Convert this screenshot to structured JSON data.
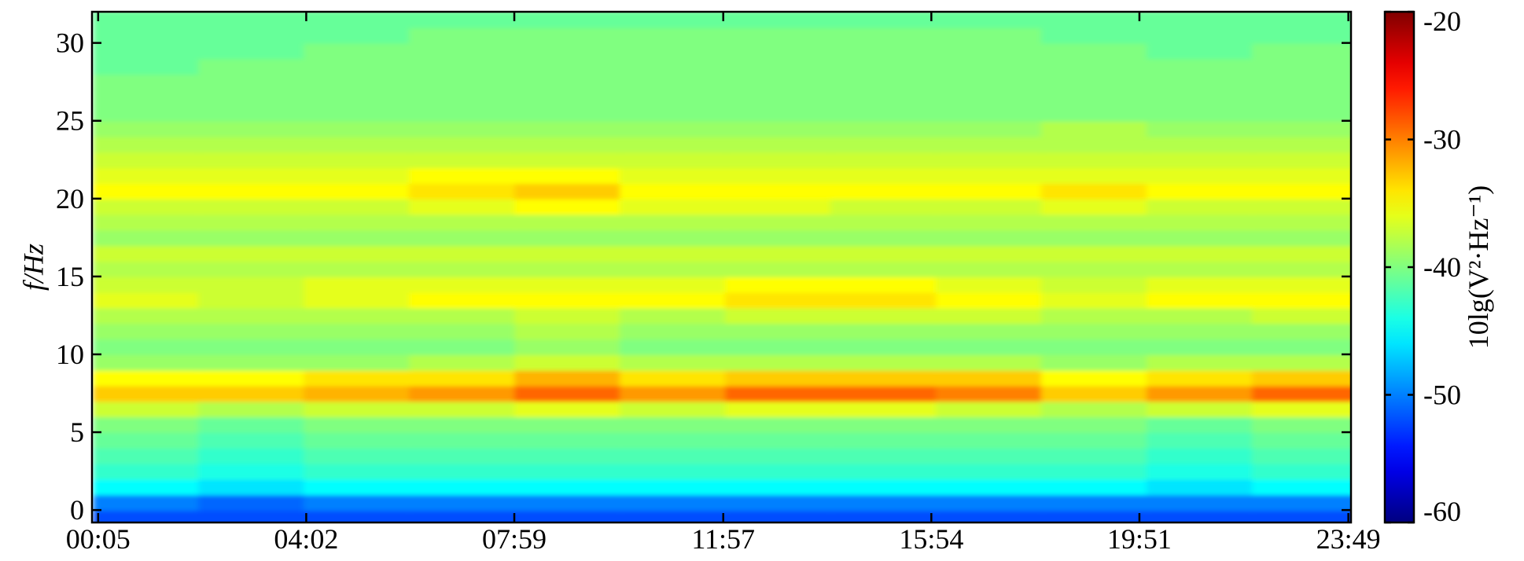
{
  "chart_data": {
    "type": "heatmap",
    "ylabel": "f/Hz",
    "x": [
      60,
      180,
      300,
      420,
      540,
      660,
      780,
      900,
      1020,
      1140,
      1260,
      1380
    ],
    "y": [
      -0.5,
      0.5,
      1.5,
      2.5,
      3.5,
      4.5,
      5.5,
      6.5,
      7.5,
      8.5,
      9.5,
      10.5,
      11.5,
      12.5,
      13.5,
      14.5,
      15.5,
      16.5,
      17.5,
      18.5,
      19.5,
      20.5,
      21.5,
      22.5,
      23.5,
      24.5,
      25.5,
      26.5,
      27.5,
      28.5,
      29.5,
      30.5,
      31.5
    ],
    "z": [
      [
        -52,
        -52,
        -52,
        -52,
        -52,
        -52,
        -52,
        -52,
        -52,
        -52,
        -52,
        -52
      ],
      [
        -50,
        -51,
        -50,
        -50,
        -50,
        -50,
        -50,
        -50,
        -50,
        -50,
        -50,
        -50
      ],
      [
        -45,
        -46,
        -45,
        -45,
        -45,
        -45,
        -45,
        -45,
        -45,
        -45,
        -46,
        -45
      ],
      [
        -43,
        -44,
        -43,
        -43,
        -43,
        -43,
        -43,
        -43,
        -43,
        -43,
        -44,
        -43
      ],
      [
        -42,
        -43,
        -42,
        -42,
        -42,
        -42,
        -42,
        -42,
        -42,
        -42,
        -43,
        -42
      ],
      [
        -41,
        -42,
        -41,
        -41,
        -41,
        -41,
        -41,
        -41,
        -41,
        -41,
        -42,
        -41
      ],
      [
        -40,
        -41,
        -40,
        -40,
        -40,
        -40,
        -40,
        -40,
        -40,
        -40,
        -41,
        -40
      ],
      [
        -37,
        -38,
        -37,
        -37,
        -36,
        -37,
        -36,
        -36,
        -37,
        -38,
        -37,
        -36
      ],
      [
        -33,
        -33,
        -32,
        -31,
        -29,
        -31,
        -29,
        -29,
        -30,
        -33,
        -31,
        -29
      ],
      [
        -35,
        -35,
        -34,
        -34,
        -32,
        -34,
        -33,
        -33,
        -33,
        -35,
        -34,
        -33
      ],
      [
        -39,
        -39,
        -39,
        -38,
        -37,
        -38,
        -38,
        -38,
        -38,
        -39,
        -38,
        -38
      ],
      [
        -40,
        -40,
        -40,
        -40,
        -39,
        -40,
        -40,
        -40,
        -40,
        -40,
        -40,
        -40
      ],
      [
        -39,
        -39,
        -39,
        -39,
        -38,
        -39,
        -39,
        -39,
        -39,
        -39,
        -39,
        -39
      ],
      [
        -38,
        -38,
        -38,
        -38,
        -37,
        -38,
        -37,
        -37,
        -37,
        -38,
        -38,
        -37
      ],
      [
        -36,
        -37,
        -36,
        -35,
        -35,
        -35,
        -34,
        -34,
        -35,
        -36,
        -35,
        -35
      ],
      [
        -37,
        -37,
        -36,
        -36,
        -36,
        -36,
        -35,
        -35,
        -36,
        -37,
        -36,
        -36
      ],
      [
        -38,
        -38,
        -38,
        -38,
        -38,
        -38,
        -38,
        -38,
        -38,
        -38,
        -38,
        -38
      ],
      [
        -37,
        -37,
        -37,
        -37,
        -37,
        -37,
        -37,
        -37,
        -37,
        -37,
        -37,
        -37
      ],
      [
        -39,
        -39,
        -39,
        -39,
        -39,
        -39,
        -39,
        -39,
        -39,
        -39,
        -39,
        -39
      ],
      [
        -38,
        -38,
        -38,
        -38,
        -38,
        -38,
        -38,
        -38,
        -38,
        -38,
        -38,
        -38
      ],
      [
        -37,
        -37,
        -37,
        -36,
        -35,
        -36,
        -36,
        -37,
        -37,
        -36,
        -37,
        -37
      ],
      [
        -35,
        -35,
        -35,
        -34,
        -33,
        -35,
        -35,
        -35,
        -35,
        -34,
        -35,
        -35
      ],
      [
        -36,
        -36,
        -36,
        -35,
        -35,
        -36,
        -36,
        -36,
        -36,
        -36,
        -36,
        -36
      ],
      [
        -37,
        -37,
        -37,
        -37,
        -37,
        -37,
        -37,
        -37,
        -37,
        -37,
        -37,
        -37
      ],
      [
        -38,
        -38,
        -38,
        -38,
        -38,
        -38,
        -38,
        -38,
        -38,
        -38,
        -38,
        -38
      ],
      [
        -39,
        -39,
        -39,
        -39,
        -39,
        -39,
        -39,
        -39,
        -39,
        -38,
        -39,
        -39
      ],
      [
        -40,
        -40,
        -40,
        -40,
        -40,
        -40,
        -40,
        -40,
        -40,
        -40,
        -40,
        -40
      ],
      [
        -40,
        -40,
        -40,
        -40,
        -40,
        -40,
        -40,
        -40,
        -40,
        -40,
        -40,
        -40
      ],
      [
        -40,
        -40,
        -40,
        -40,
        -40,
        -40,
        -40,
        -40,
        -40,
        -40,
        -40,
        -40
      ],
      [
        -41,
        -40,
        -40,
        -40,
        -40,
        -40,
        -40,
        -40,
        -40,
        -40,
        -40,
        -40
      ],
      [
        -41,
        -41,
        -40,
        -40,
        -40,
        -40,
        -40,
        -40,
        -40,
        -40,
        -41,
        -40
      ],
      [
        -41,
        -41,
        -41,
        -40,
        -40,
        -40,
        -40,
        -40,
        -40,
        -41,
        -41,
        -41
      ],
      [
        -41,
        -41,
        -41,
        -41,
        -41,
        -41,
        -41,
        -41,
        -41,
        -41,
        -41,
        -41
      ]
    ],
    "xlim": [
      -2,
      1432
    ],
    "xticks": [
      {
        "value": 5,
        "label": "00:05"
      },
      {
        "value": 242,
        "label": "04:02"
      },
      {
        "value": 479,
        "label": "07:59"
      },
      {
        "value": 717,
        "label": "11:57"
      },
      {
        "value": 954,
        "label": "15:54"
      },
      {
        "value": 1191,
        "label": "19:51"
      },
      {
        "value": 1429,
        "label": "23:49"
      }
    ],
    "ylim": [
      -0.8,
      32
    ],
    "yticks": [
      0,
      5,
      10,
      15,
      20,
      25,
      30
    ],
    "colorbar": {
      "label": "10lg(V²·Hz⁻¹)",
      "lim": [
        -60,
        -20
      ],
      "ticks": [
        -60,
        -50,
        -40,
        -30,
        -20
      ],
      "colormap": "jet"
    }
  }
}
